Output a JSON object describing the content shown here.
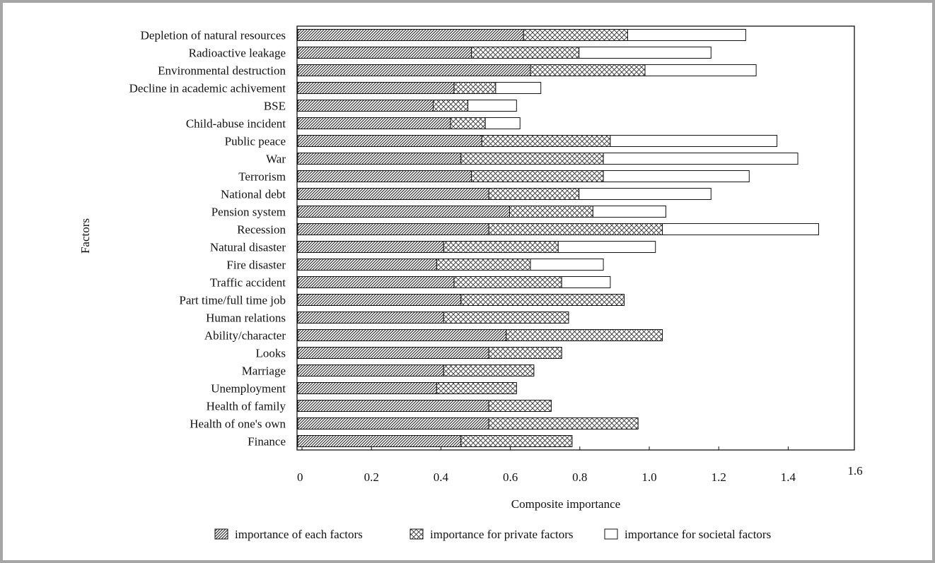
{
  "chart_data": {
    "type": "bar",
    "orientation": "horizontal",
    "stacked": true,
    "xlabel": "Composite importance",
    "ylabel": "Factors",
    "xlim": [
      0,
      1.6
    ],
    "xticks": [
      "0",
      "0.2",
      "0.4",
      "0.6",
      "0.8",
      "1.0",
      "1.2",
      "1.4",
      "1.6"
    ],
    "grid": false,
    "legend_position": "bottom",
    "categories": [
      "Depletion of natural resources",
      "Radioactive leakage",
      "Environmental destruction",
      "Decline in academic achivement",
      "BSE",
      "Child-abuse incident",
      "Public peace",
      "War",
      "Terrorism",
      "National debt",
      "Pension system",
      "Recession",
      "Natural disaster",
      "Fire disaster",
      "Traffic accident",
      "Part time/full time job",
      "Human relations",
      "Ability/character",
      "Looks",
      "Marriage",
      "Unemployment",
      "Health of family",
      "Health of one's own",
      "Finance"
    ],
    "series": [
      {
        "name": "importance of each factors",
        "pattern": "diagonal-hatch",
        "values": [
          0.65,
          0.5,
          0.67,
          0.45,
          0.39,
          0.44,
          0.53,
          0.47,
          0.5,
          0.55,
          0.61,
          0.55,
          0.42,
          0.4,
          0.45,
          0.47,
          0.42,
          0.6,
          0.55,
          0.42,
          0.4,
          0.55,
          0.55,
          0.47
        ]
      },
      {
        "name": "importance for private factors",
        "pattern": "cross-hatch",
        "values": [
          0.3,
          0.31,
          0.33,
          0.12,
          0.1,
          0.1,
          0.37,
          0.41,
          0.38,
          0.26,
          0.24,
          0.5,
          0.33,
          0.27,
          0.31,
          0.47,
          0.36,
          0.45,
          0.21,
          0.26,
          0.23,
          0.18,
          0.43,
          0.32
        ]
      },
      {
        "name": "importance for societal factors",
        "pattern": "none",
        "values": [
          0.34,
          0.38,
          0.32,
          0.13,
          0.14,
          0.1,
          0.48,
          0.56,
          0.42,
          0.38,
          0.21,
          0.45,
          0.28,
          0.21,
          0.14,
          0.0,
          0.0,
          0.0,
          0.0,
          0.0,
          0.0,
          0.0,
          0.0,
          0.0
        ]
      }
    ]
  }
}
